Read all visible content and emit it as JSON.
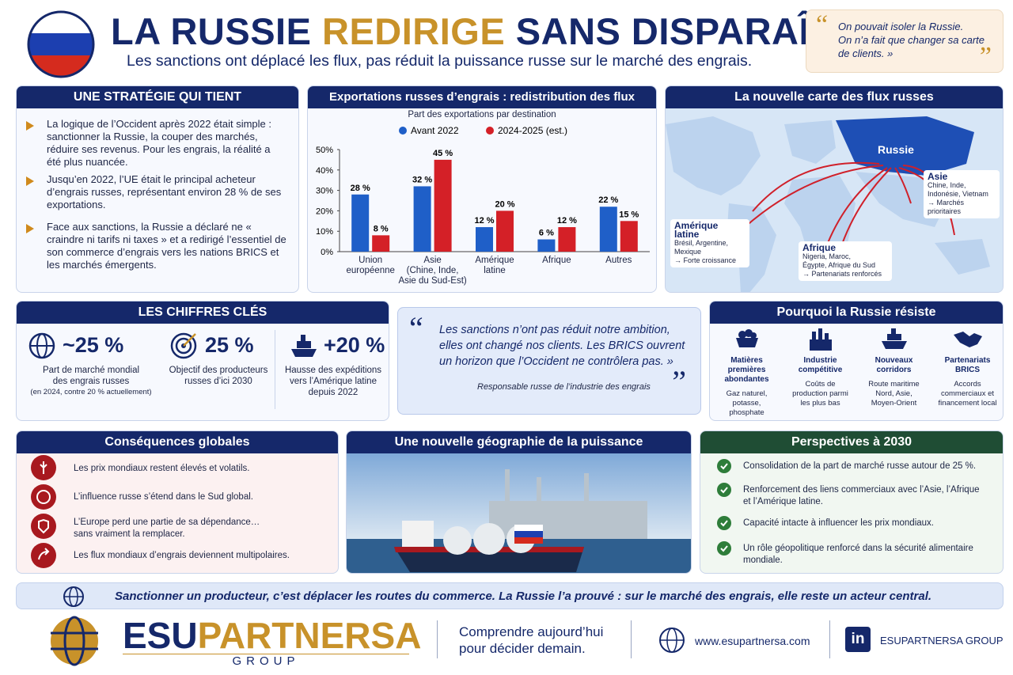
{
  "header": {
    "title_a": "LA RUSSIE",
    "title_b": "REDIRIGE",
    "title_c": "SANS DISPARAÎTRE",
    "subtitle": "Les sanctions ont déplacé les flux, pas réduit la puissance russe sur le marché des engrais."
  },
  "top_quote": {
    "open_mark": "“",
    "text": "On pouvait isoler la Russie.\nOn n’a fait que changer sa carte\nde clients. »",
    "close_mark": "”"
  },
  "strategy": {
    "title": "UNE STRATÉGIE QUI TIENT",
    "items": [
      "La logique de l’Occident après 2022 était simple : sanctionner la Russie, la couper des marchés, réduire ses revenus. Pour les engrais, la réalité a été plus nuancée.",
      "Jusqu’en 2022, l’UE était le principal acheteur d’engrais russes, représentant environ 28 % de ses exportations.",
      "Face aux sanctions, la Russie a déclaré ne « craindre ni tarifs ni taxes » et a redirigé l’essentiel de son commerce d’engrais vers les nations BRICS et les marchés émergents."
    ]
  },
  "chart_data": {
    "type": "bar",
    "title": "Exportations russes d’engrais : redistribution des flux",
    "subtitle": "Part des exportations par destination",
    "categories": [
      "Union\neuropéenne",
      "Asie\n(Chine, Inde,\nAsie du Sud-Est)",
      "Amérique\nlatine",
      "Afrique",
      "Autres"
    ],
    "series": [
      {
        "name": "Avant 2022",
        "color": "#1f5fc8",
        "values": [
          28,
          32,
          12,
          6,
          22
        ],
        "value_labels": [
          "28 %",
          "32 %",
          "12 %",
          "6 %",
          "22 %"
        ]
      },
      {
        "name": "2024-2025 (est.)",
        "color": "#d42027",
        "values": [
          8,
          45,
          20,
          12,
          15
        ],
        "value_labels": [
          "8 %",
          "45 %",
          "20 %",
          "12 %",
          "15 %"
        ]
      }
    ],
    "ylim": [
      0,
      50
    ],
    "yticks": [
      {
        "value": 0,
        "label": "0%"
      },
      {
        "value": 10,
        "label": "10%"
      },
      {
        "value": 20,
        "label": "20%"
      },
      {
        "value": 30,
        "label": "30%"
      },
      {
        "value": 40,
        "label": "40%"
      },
      {
        "value": 50,
        "label": "50%"
      }
    ],
    "grid": false,
    "legend": "top"
  },
  "map": {
    "title": "La nouvelle carte des flux russes",
    "russia": "Russie",
    "asia": {
      "name": "Asie",
      "countries": "Chine, Inde,\nIndonésie, Vietnam",
      "note": "→ Marchés prioritaires"
    },
    "latam": {
      "name": "Amérique latine",
      "countries": "Brésil, Argentine,\nMexique",
      "note": "→ Forte croissance"
    },
    "africa": {
      "name": "Afrique",
      "countries": "Nigeria, Maroc,\nÉgypte, Afrique du Sud",
      "note": "→ Partenariats renforcés"
    }
  },
  "key_figures": {
    "title": "LES CHIFFRES CLÉS",
    "items": [
      {
        "value": "~25 %",
        "text": "Part de marché mondial\ndes engrais russes",
        "note": "(en 2024, contre 20 % actuellement)"
      },
      {
        "value": "25 %",
        "text": "Objectif des producteurs\nrusses d’ici 2030"
      },
      {
        "value": "+20 %",
        "text": "Hausse des expéditions\nvers l’Amérique latine\ndepuis 2022"
      }
    ]
  },
  "mid_quote": {
    "open_mark": "“",
    "text": "Les sanctions n’ont pas réduit notre ambition,\nelles ont changé nos clients. Les BRICS ouvrent\nun horizon que l’Occident ne contrôlera pas. »",
    "author": "Responsable russe de l’industrie des engrais",
    "close_mark": "”"
  },
  "resilience": {
    "title": "Pourquoi la Russie résiste",
    "items": [
      {
        "title": "Matières\npremières abondantes",
        "text": "Gaz naturel,\npotasse,\nphosphate"
      },
      {
        "title": "Industrie\ncompétitive",
        "text": "Coûts de\nproduction parmi\nles plus bas"
      },
      {
        "title": "Nouveaux\ncorridors",
        "text": "Route maritime\nNord, Asie,\nMoyen-Orient"
      },
      {
        "title": "Partenariats\nBRICS",
        "text": "Accords\ncommerciaux et\nfinancement local"
      }
    ]
  },
  "consequences": {
    "title": "Conséquences globales",
    "items": [
      "Les prix mondiaux restent élevés et volatils.",
      "L’influence russe s’étend dans le Sud global.",
      "L’Europe perd une partie de sa dépendance…\nsans vraiment la remplacer.",
      "Les flux mondiaux d’engrais deviennent multipolaires."
    ]
  },
  "photo": {
    "title": "Une nouvelle géographie de la puissance"
  },
  "outlook": {
    "title": "Perspectives à 2030",
    "items": [
      "Consolidation de la part de marché russe autour de 25 %.",
      "Renforcement des liens commerciaux avec l’Asie, l’Afrique\net l’Amérique latine.",
      "Capacité intacte à influencer les prix mondiaux.",
      "Un rôle géopolitique renforcé dans la sécurité alimentaire\nmondiale."
    ]
  },
  "banner": {
    "text": "Sanctionner un producteur, c’est déplacer les routes du commerce. La Russie l’a prouvé : sur le marché des engrais, elle reste un acteur central."
  },
  "footer": {
    "brand_a": "ESU",
    "brand_b": "PARTNERSA",
    "brand_c": "GROUP",
    "tagline": "Comprendre aujourd’hui\npour décider demain.",
    "website": "www.esupartnersa.com",
    "linkedin_icon": "in",
    "linkedin": "ESUPARTNERSA GROUP"
  }
}
